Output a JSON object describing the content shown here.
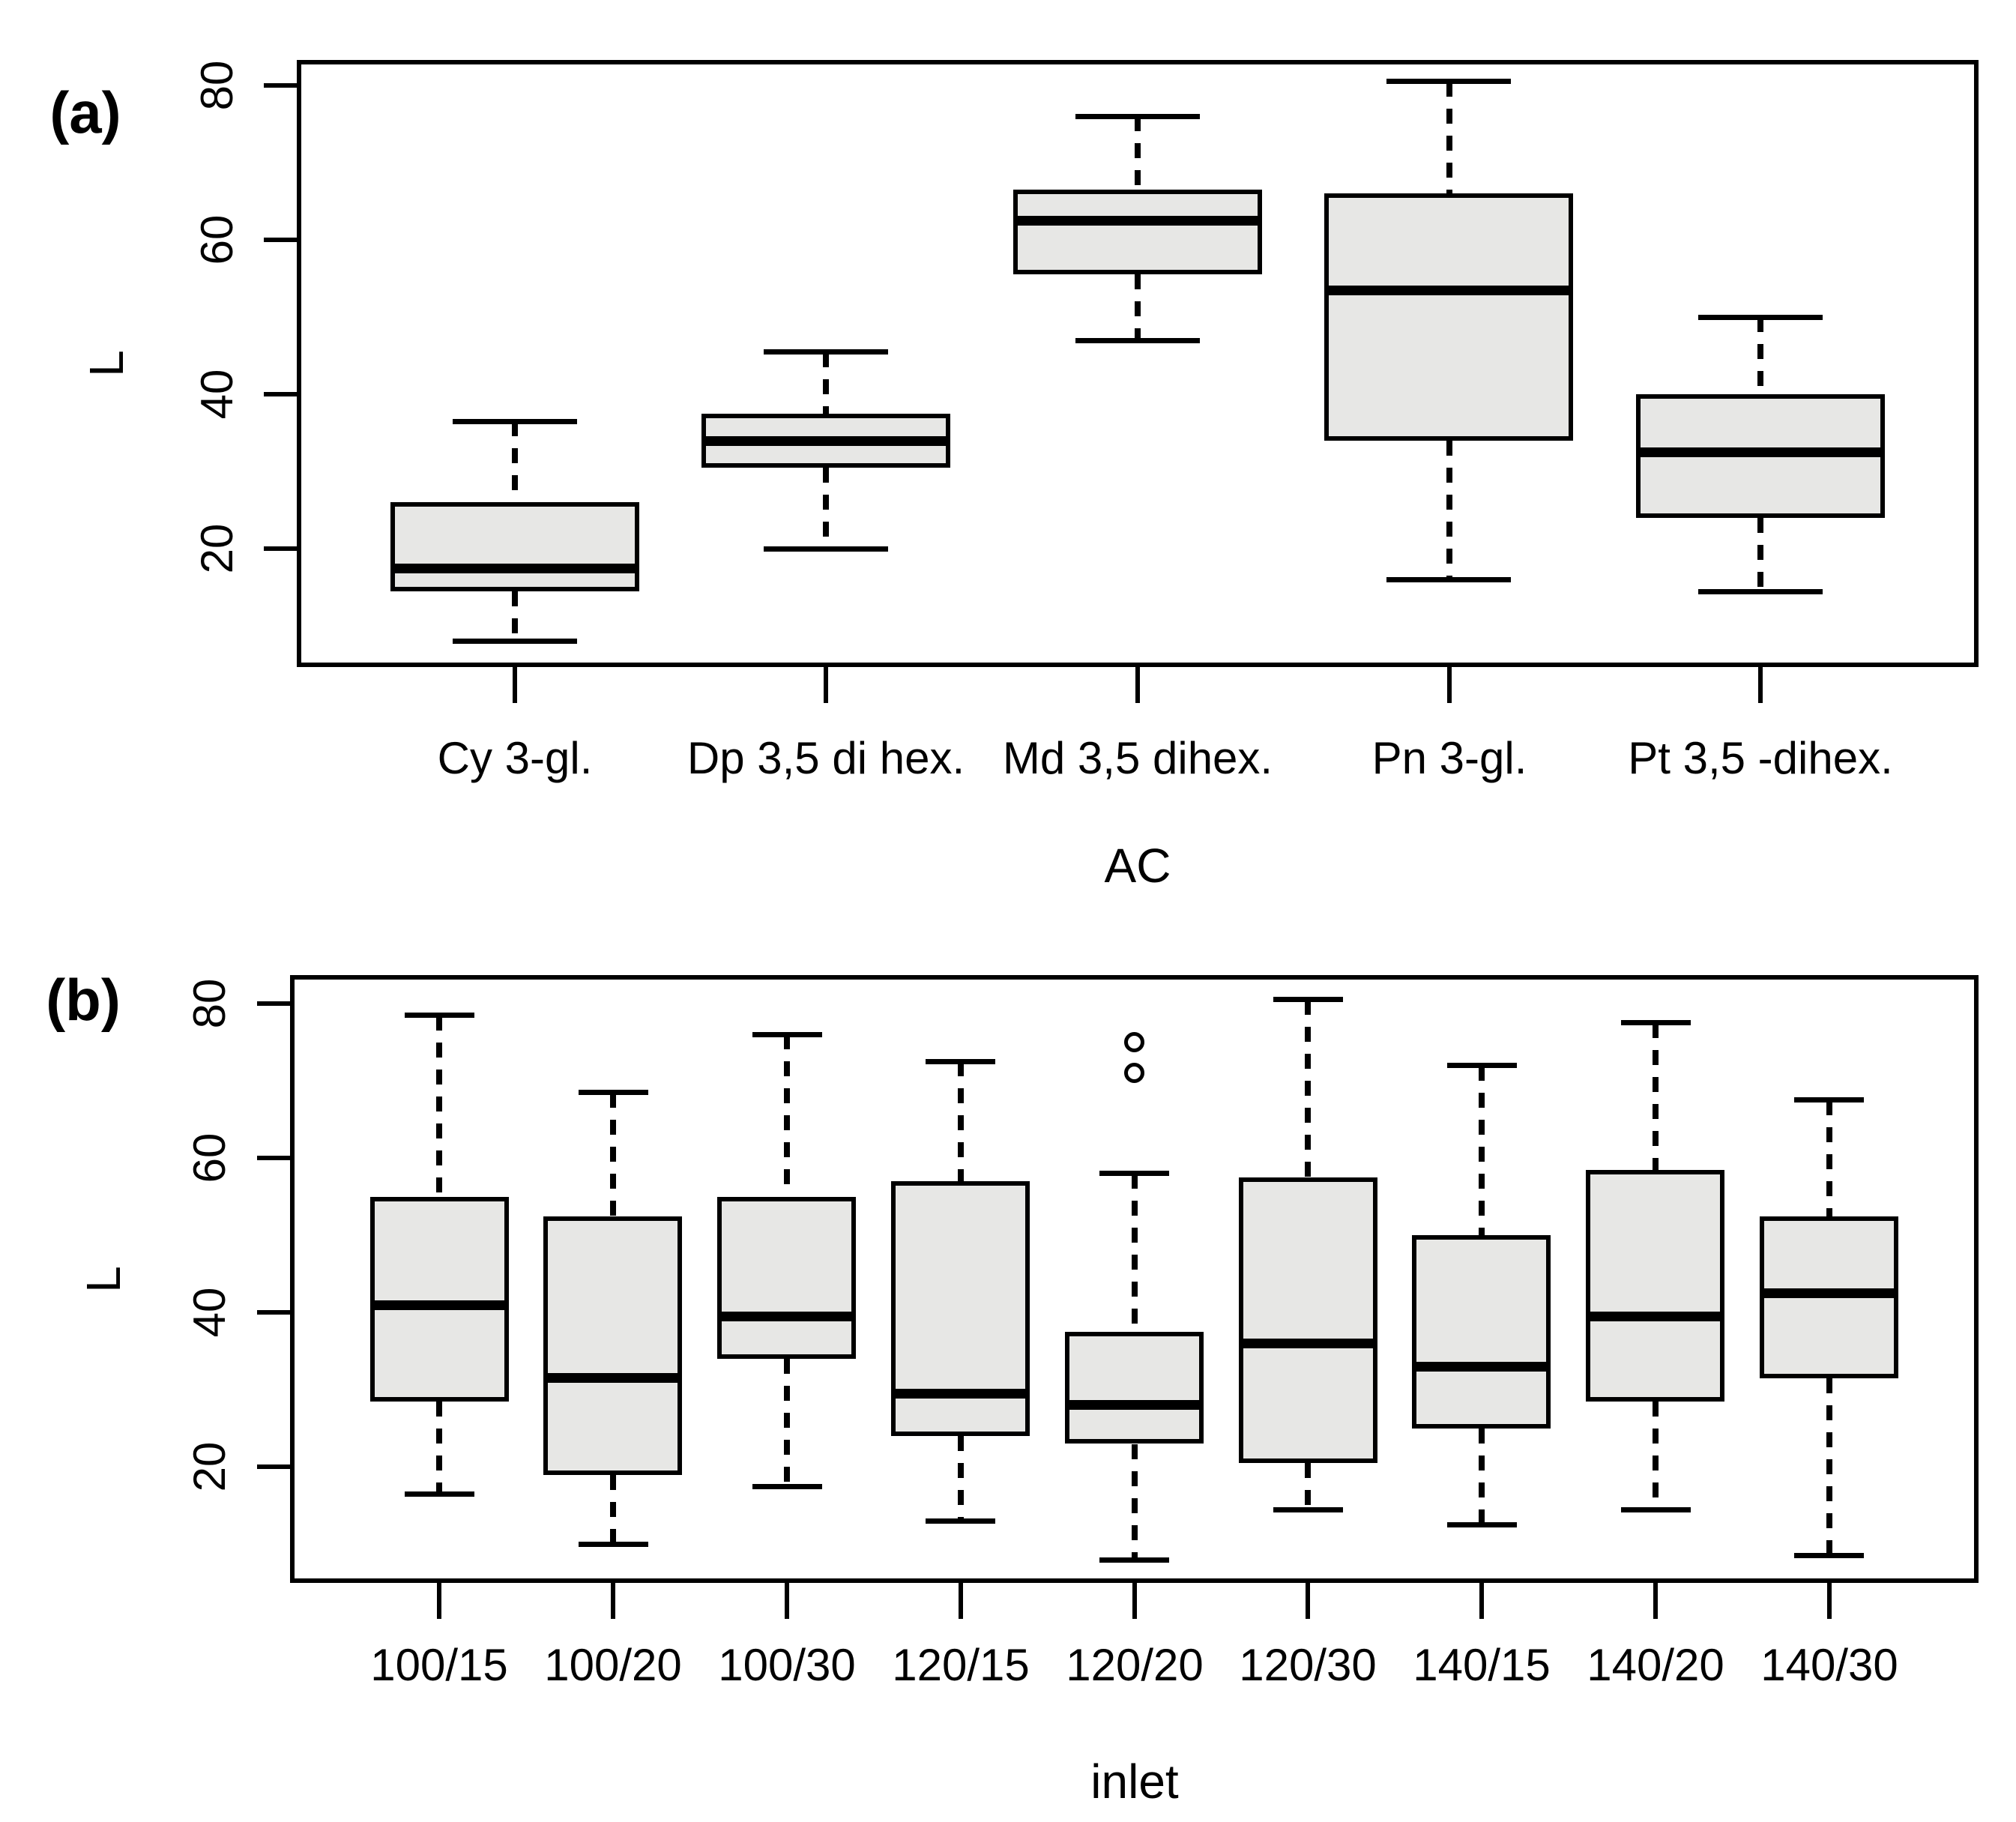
{
  "figure": {
    "background": "#ffffff",
    "box_fill": "#e7e7e5",
    "line_color": "#000000"
  },
  "chart_data": [
    {
      "type": "boxplot",
      "panel_label": "(a)",
      "xlabel": "AC",
      "ylabel": "L",
      "yticks": [
        20,
        40,
        60,
        80
      ],
      "ylim": [
        4.7,
        83.3
      ],
      "grid": false,
      "categories": [
        "Cy 3-gl.",
        "Dp 3,5 di hex.",
        "Md 3,5 dihex.",
        "Pn 3-gl.",
        "Pt 3,5 -dihex."
      ],
      "boxes": [
        {
          "category": "Cy 3-gl.",
          "whisker_low": 8,
          "q1": 14.5,
          "median": 17.5,
          "q3": 26,
          "whisker_high": 36.5,
          "outliers": []
        },
        {
          "category": "Dp 3,5 di hex.",
          "whisker_low": 20,
          "q1": 30.5,
          "median": 34,
          "q3": 37.5,
          "whisker_high": 45.5,
          "outliers": []
        },
        {
          "category": "Md 3,5 dihex.",
          "whisker_low": 47,
          "q1": 55.5,
          "median": 62.5,
          "q3": 66.5,
          "whisker_high": 76,
          "outliers": []
        },
        {
          "category": "Pn 3-gl.",
          "whisker_low": 16,
          "q1": 34,
          "median": 53.5,
          "q3": 66,
          "whisker_high": 80.5,
          "outliers": []
        },
        {
          "category": "Pt 3,5 -dihex.",
          "whisker_low": 14.5,
          "q1": 24,
          "median": 32.5,
          "q3": 40,
          "whisker_high": 50,
          "outliers": []
        }
      ]
    },
    {
      "type": "boxplot",
      "panel_label": "(b)",
      "xlabel": "inlet",
      "ylabel": "L",
      "yticks": [
        20,
        40,
        60,
        80
      ],
      "ylim": [
        5.0,
        83.7
      ],
      "grid": false,
      "categories": [
        "100/15",
        "100/20",
        "100/30",
        "120/15",
        "120/20",
        "120/30",
        "140/15",
        "140/20",
        "140/30"
      ],
      "boxes": [
        {
          "category": "100/15",
          "whisker_low": 16.5,
          "q1": 28.5,
          "median": 41,
          "q3": 55,
          "whisker_high": 78.5,
          "outliers": []
        },
        {
          "category": "100/20",
          "whisker_low": 10,
          "q1": 19,
          "median": 31.5,
          "q3": 52.5,
          "whisker_high": 68.5,
          "outliers": []
        },
        {
          "category": "100/30",
          "whisker_low": 17.5,
          "q1": 34,
          "median": 39.5,
          "q3": 55,
          "whisker_high": 76,
          "outliers": []
        },
        {
          "category": "120/15",
          "whisker_low": 13,
          "q1": 24,
          "median": 29.5,
          "q3": 57,
          "whisker_high": 72.5,
          "outliers": []
        },
        {
          "category": "120/20",
          "whisker_low": 8,
          "q1": 23,
          "median": 28,
          "q3": 37.5,
          "whisker_high": 58,
          "outliers": [
            71,
            75
          ]
        },
        {
          "category": "120/30",
          "whisker_low": 14.5,
          "q1": 20.5,
          "median": 36,
          "q3": 57.5,
          "whisker_high": 80.5,
          "outliers": []
        },
        {
          "category": "140/15",
          "whisker_low": 12.5,
          "q1": 25,
          "median": 33,
          "q3": 50,
          "whisker_high": 72,
          "outliers": []
        },
        {
          "category": "140/20",
          "whisker_low": 14.5,
          "q1": 28.5,
          "median": 39.5,
          "q3": 58.5,
          "whisker_high": 77.5,
          "outliers": []
        },
        {
          "category": "140/30",
          "whisker_low": 8.5,
          "q1": 31.5,
          "median": 42.5,
          "q3": 52.5,
          "whisker_high": 67.5,
          "outliers": []
        }
      ]
    }
  ]
}
